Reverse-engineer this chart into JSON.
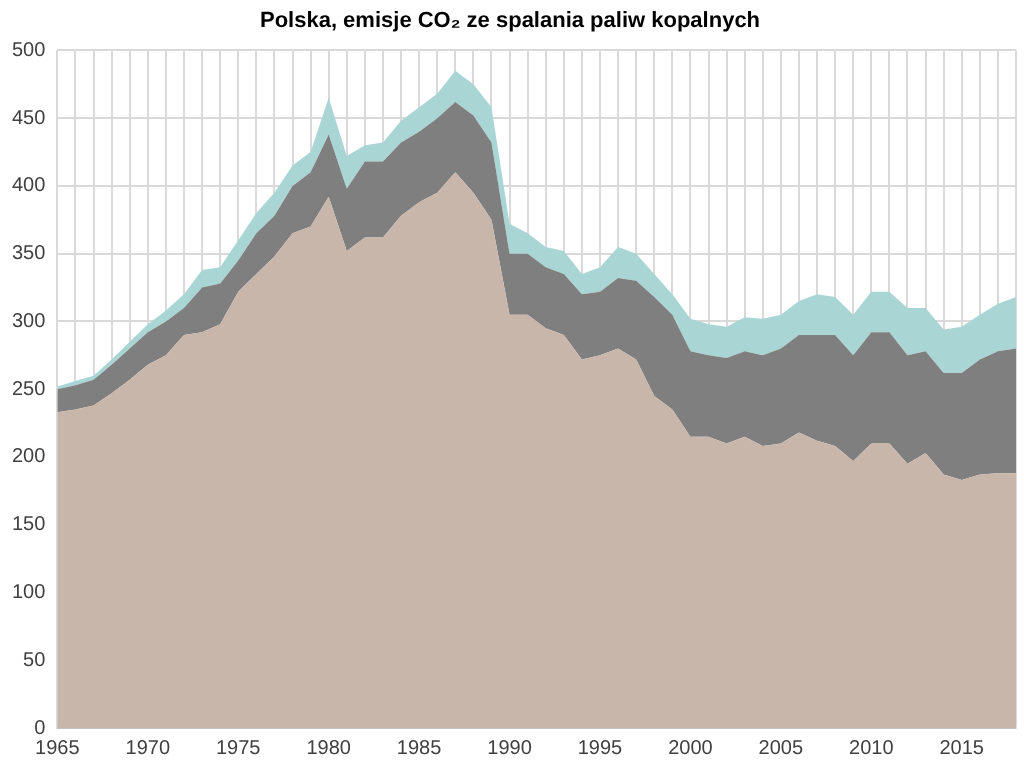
{
  "chart_data": {
    "type": "area",
    "title": "Polska, emisje CO₂ ze spalania paliw kopalnych",
    "categories": [
      "1965",
      null,
      null,
      null,
      null,
      "1970",
      null,
      null,
      null,
      null,
      "1975",
      null,
      null,
      null,
      null,
      "1980",
      null,
      null,
      null,
      null,
      "1985",
      null,
      null,
      null,
      null,
      "1990",
      null,
      null,
      null,
      null,
      "1995",
      null,
      null,
      null,
      null,
      "2000",
      null,
      null,
      null,
      null,
      "2005",
      null,
      null,
      null,
      null,
      "2010",
      null,
      null,
      null,
      null,
      "2015",
      null,
      null,
      null
    ],
    "stacked": true,
    "ylim": [
      0,
      500
    ],
    "yticks": [
      0,
      50,
      100,
      150,
      200,
      250,
      300,
      350,
      400,
      450,
      500
    ],
    "grid": true,
    "legend": false,
    "series": [
      {
        "color": "#c9b6aa",
        "values": [
          233,
          235,
          238,
          247,
          257,
          268,
          275,
          290,
          292,
          298,
          322,
          335,
          348,
          365,
          370,
          392,
          352,
          362,
          362,
          378,
          388,
          395,
          410,
          395,
          375,
          305,
          305,
          295,
          290,
          272,
          275,
          280,
          272,
          245,
          235,
          215,
          215,
          210,
          215,
          208,
          210,
          218,
          212,
          208,
          197,
          210,
          210,
          195,
          203,
          187,
          183,
          187,
          188,
          188
        ]
      },
      {
        "color": "#7f7f7f",
        "values": [
          17,
          18,
          19,
          21,
          23,
          24,
          25,
          20,
          33,
          30,
          23,
          30,
          30,
          35,
          40,
          46,
          46,
          56,
          56,
          54,
          52,
          55,
          52,
          57,
          57,
          45,
          45,
          45,
          45,
          48,
          47,
          52,
          58,
          73,
          70,
          63,
          60,
          63,
          63,
          67,
          70,
          72,
          78,
          82,
          78,
          82,
          82,
          80,
          75,
          75,
          79,
          85,
          90,
          92
        ]
      },
      {
        "color": "#a9d6d5",
        "values": [
          2,
          3,
          3,
          4,
          5,
          6,
          8,
          10,
          13,
          12,
          15,
          15,
          17,
          15,
          15,
          27,
          24,
          12,
          14,
          16,
          18,
          18,
          23,
          23,
          26,
          22,
          15,
          15,
          17,
          15,
          18,
          23,
          20,
          17,
          15,
          24,
          23,
          23,
          25,
          27,
          25,
          25,
          30,
          28,
          30,
          30,
          30,
          35,
          32,
          32,
          34,
          33,
          35,
          38
        ]
      }
    ]
  }
}
